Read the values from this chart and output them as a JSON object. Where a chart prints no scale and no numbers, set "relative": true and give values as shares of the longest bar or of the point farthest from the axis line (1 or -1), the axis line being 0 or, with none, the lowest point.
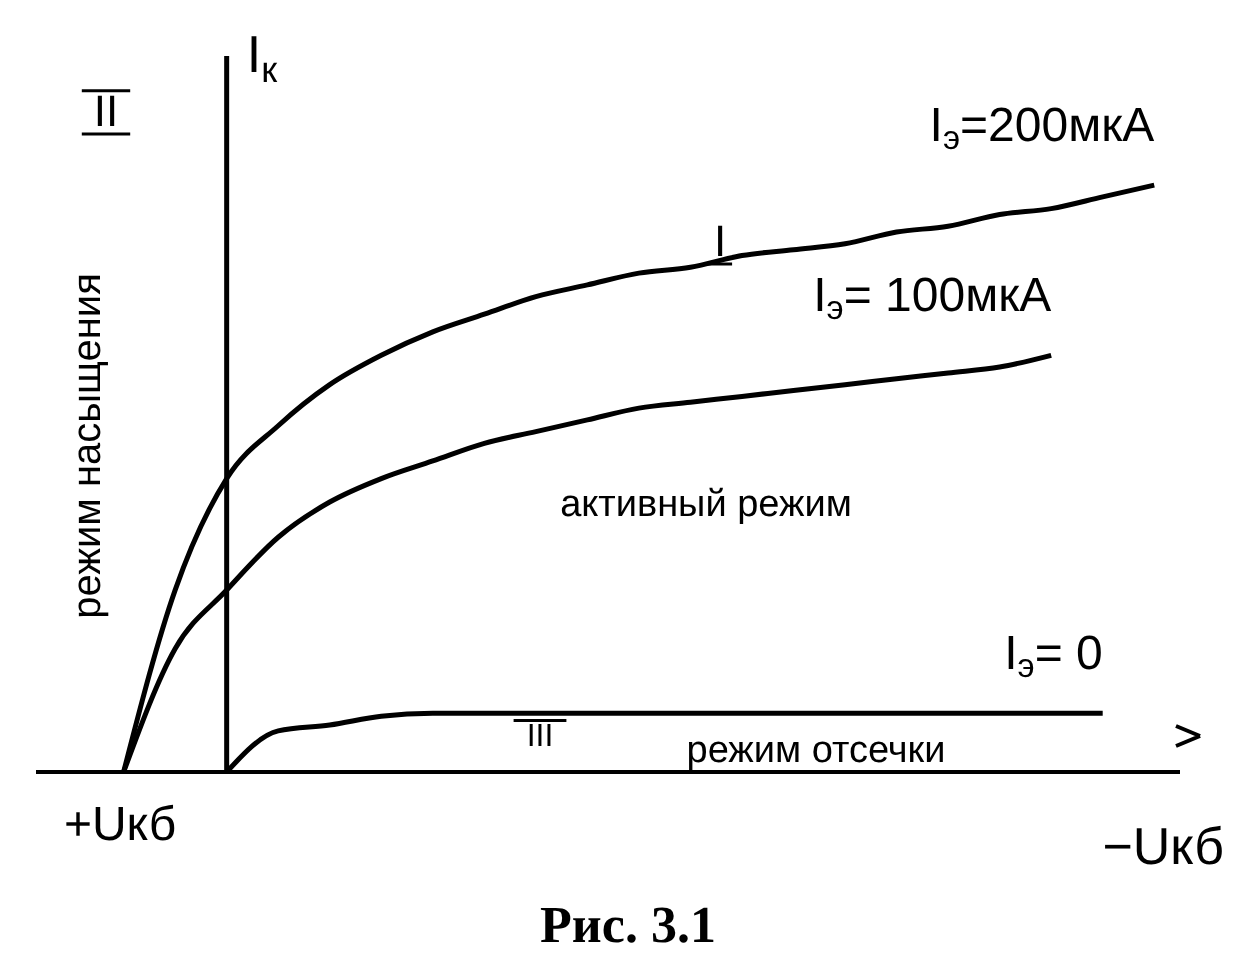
{
  "chart_data": {
    "type": "line",
    "relative": true,
    "title": "Рис. 3.1",
    "xlabel": "−Uкб",
    "ylabel": "I$_{к}$",
    "categories": [
      null,
      null,
      null,
      null,
      null,
      null,
      null,
      null,
      null,
      null,
      null,
      null,
      null,
      null,
      null,
      null,
      null,
      null,
      null,
      null,
      null,
      null
    ],
    "series": [
      {
        "name": "I$_{э}$=200мкА",
        "color": "#000000",
        "values": [
          null,
          0,
          0.31,
          0.5,
          0.59,
          0.66,
          0.71,
          0.75,
          0.78,
          0.81,
          0.83,
          0.85,
          0.86,
          0.88,
          0.89,
          0.9,
          0.92,
          0.93,
          0.95,
          0.96,
          0.98,
          1
        ]
      },
      {
        "name": "I$_{э}$= 100мкА",
        "color": "#000000",
        "values": [
          null,
          0,
          0.21,
          0.31,
          0.4,
          0.46,
          0.5,
          0.53,
          0.56,
          0.58,
          0.6,
          0.62,
          0.63,
          0.64,
          0.65,
          0.66,
          0.67,
          0.68,
          0.69,
          0.71,
          null,
          null
        ]
      },
      {
        "name": "I$_{э}$= 0",
        "color": "#000000",
        "values": [
          null,
          null,
          null,
          0,
          0.07,
          0.08,
          0.095,
          0.1,
          0.1,
          0.1,
          0.1,
          0.1,
          0.1,
          0.1,
          0.1,
          0.1,
          0.1,
          0.1,
          0.1,
          0.1,
          0.1,
          null
        ]
      }
    ],
    "annotations": [
      "+Uкб",
      "II",
      "I",
      "III",
      "режим насыщения",
      "активный режим",
      "режим отсечки"
    ],
    "marker": "none",
    "line_style": "solid"
  }
}
